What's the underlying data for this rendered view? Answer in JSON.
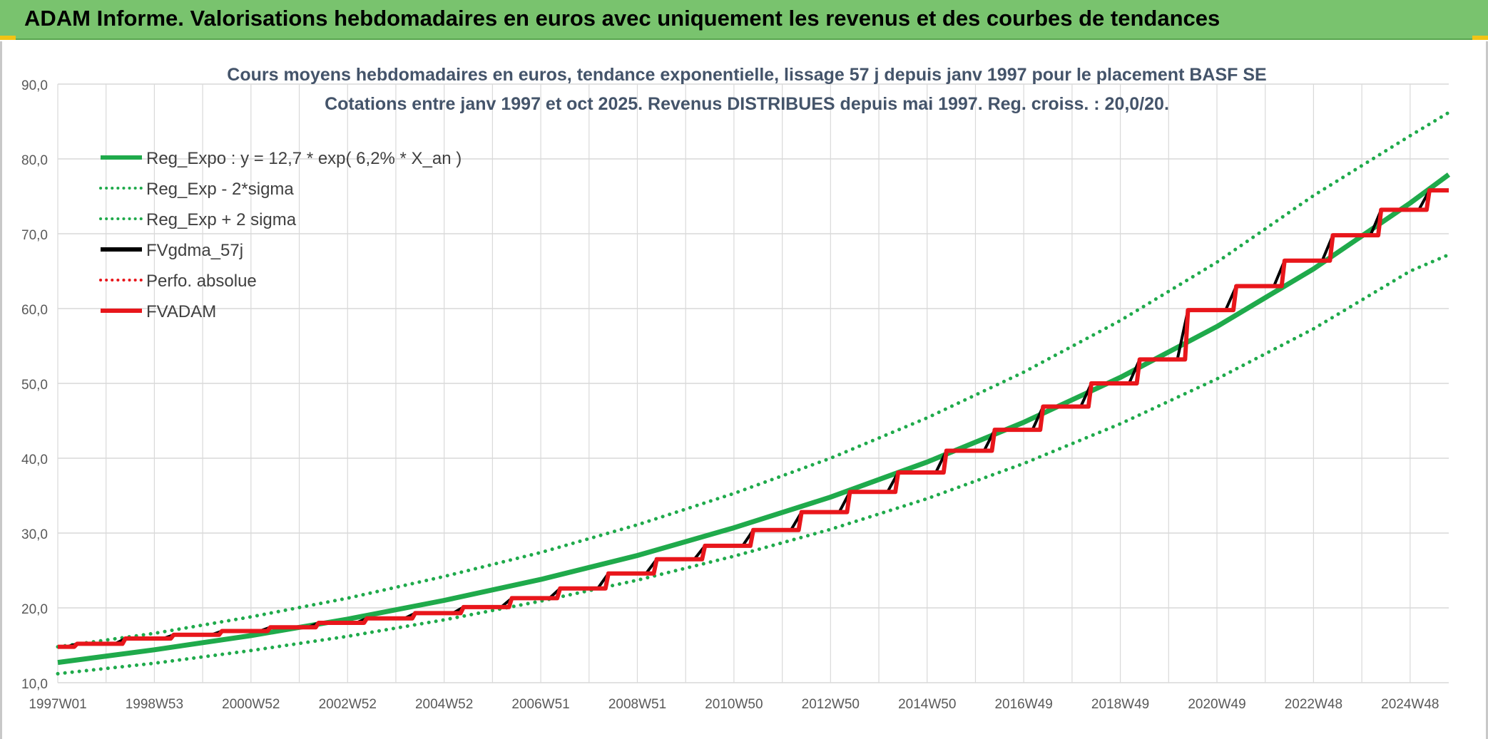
{
  "header": {
    "title": "ADAM Informe. Valorisations hebdomadaires en euros avec uniquement les revenus et des courbes de tendances"
  },
  "colors": {
    "header_bg": "#79c36e",
    "reg_expo": "#1faa4b",
    "fvgdma": "#000000",
    "fvadam": "#e8161b",
    "perfo": "#e8161b",
    "grid": "#d9d9d9",
    "title_text": "#44546a",
    "tick_text": "#595959"
  },
  "chart_data": {
    "type": "line",
    "title": "Cours moyens hebdomadaires en euros, tendance exponentielle, lissage 57 j depuis janv 1997 pour le placement BASF SE",
    "subtitle": "Cotations entre janv 1997 et oct 2025. Revenus DISTRIBUES depuis mai 1997. Reg. croiss. : 20,0/20.",
    "xlabel": "",
    "ylabel": "",
    "ylim": [
      10,
      90
    ],
    "y_ticks": [
      "10,0",
      "20,0",
      "30,0",
      "40,0",
      "50,0",
      "60,0",
      "70,0",
      "80,0",
      "90,0"
    ],
    "x_range": [
      1997.0,
      2025.8
    ],
    "x_tick_labels": [
      "1997W01",
      "1998W53",
      "2000W52",
      "2002W52",
      "2004W52",
      "2006W51",
      "2008W51",
      "2010W50",
      "2012W50",
      "2014W50",
      "2016W49",
      "2018W49",
      "2020W49",
      "2022W48",
      "2024W48"
    ],
    "x_tick_years": [
      1997.0,
      1999.0,
      2001.0,
      2003.0,
      2005.0,
      2007.0,
      2009.0,
      2011.0,
      2013.0,
      2015.0,
      2017.0,
      2019.0,
      2021.0,
      2023.0,
      2025.0
    ],
    "grid": true,
    "legend_position": "top-left",
    "series": [
      {
        "name": "Reg_Expo : y = 12,7 * exp( 6,2% *  X_an )",
        "style": "solid",
        "color": "#1faa4b",
        "x": [
          1997.0,
          1999.0,
          2001.0,
          2003.0,
          2005.0,
          2007.0,
          2009.0,
          2011.0,
          2013.0,
          2015.0,
          2017.0,
          2019.0,
          2021.0,
          2023.0,
          2025.0,
          2025.8
        ],
        "values": [
          12.7,
          14.4,
          16.3,
          18.5,
          21.0,
          23.8,
          27.0,
          30.7,
          34.8,
          39.5,
          44.8,
          50.8,
          57.6,
          65.3,
          74.1,
          77.9
        ]
      },
      {
        "name": "Reg_Exp - 2*sigma",
        "style": "dotted",
        "color": "#1faa4b",
        "x": [
          1997.0,
          1999.0,
          2001.0,
          2003.0,
          2005.0,
          2007.0,
          2009.0,
          2011.0,
          2013.0,
          2015.0,
          2017.0,
          2019.0,
          2021.0,
          2023.0,
          2025.0,
          2025.8
        ],
        "values": [
          11.2,
          12.6,
          14.3,
          16.2,
          18.4,
          20.9,
          23.7,
          26.9,
          30.5,
          34.6,
          39.3,
          44.6,
          50.6,
          57.3,
          65.0,
          67.2
        ]
      },
      {
        "name": "Reg_Exp + 2 sigma",
        "style": "dotted",
        "color": "#1faa4b",
        "x": [
          1997.0,
          1999.0,
          2001.0,
          2003.0,
          2005.0,
          2007.0,
          2009.0,
          2011.0,
          2013.0,
          2015.0,
          2017.0,
          2019.0,
          2021.0,
          2023.0,
          2025.0,
          2025.8
        ],
        "values": [
          14.8,
          16.6,
          18.8,
          21.3,
          24.2,
          27.4,
          31.1,
          35.3,
          40.0,
          45.4,
          51.5,
          58.4,
          66.2,
          75.1,
          83.1,
          86.2
        ]
      },
      {
        "name": "FVgdma_57j",
        "style": "solid",
        "color": "#000000",
        "x": [
          1997.0,
          1997.4,
          1998.4,
          1999.4,
          2000.4,
          2001.4,
          2002.4,
          2003.4,
          2004.4,
          2005.4,
          2006.4,
          2007.4,
          2008.4,
          2009.4,
          2010.4,
          2011.4,
          2012.4,
          2013.4,
          2014.4,
          2015.4,
          2016.4,
          2017.4,
          2018.4,
          2019.4,
          2020.4,
          2021.4,
          2022.4,
          2023.4,
          2024.4,
          2025.4
        ],
        "values": [
          14.8,
          15.2,
          15.9,
          16.4,
          16.9,
          17.4,
          18.0,
          18.6,
          19.3,
          20.1,
          21.3,
          22.6,
          24.6,
          26.5,
          28.3,
          30.4,
          32.8,
          35.5,
          38.1,
          41.0,
          43.8,
          46.9,
          50.0,
          53.2,
          59.8,
          63.0,
          66.4,
          69.8,
          73.2,
          75.8
        ]
      },
      {
        "name": "Perfo. absolue",
        "style": "dotted",
        "color": "#e8161b"
      },
      {
        "name": "FVADAM",
        "style": "solid",
        "color": "#e8161b",
        "x": [
          1997.0,
          1997.4,
          1998.4,
          1999.4,
          2000.4,
          2001.4,
          2002.4,
          2003.4,
          2004.4,
          2005.4,
          2006.4,
          2007.4,
          2008.4,
          2009.4,
          2010.4,
          2011.4,
          2012.4,
          2013.4,
          2014.4,
          2015.4,
          2016.4,
          2017.4,
          2018.4,
          2019.4,
          2020.4,
          2021.4,
          2022.4,
          2023.4,
          2024.4,
          2025.4
        ],
        "values": [
          14.8,
          15.2,
          15.9,
          16.4,
          16.9,
          17.4,
          18.0,
          18.6,
          19.3,
          20.1,
          21.3,
          22.6,
          24.6,
          26.5,
          28.3,
          30.4,
          32.8,
          35.5,
          38.1,
          41.0,
          43.8,
          46.9,
          50.0,
          53.2,
          59.8,
          63.0,
          66.4,
          69.8,
          73.2,
          75.8
        ]
      }
    ]
  }
}
